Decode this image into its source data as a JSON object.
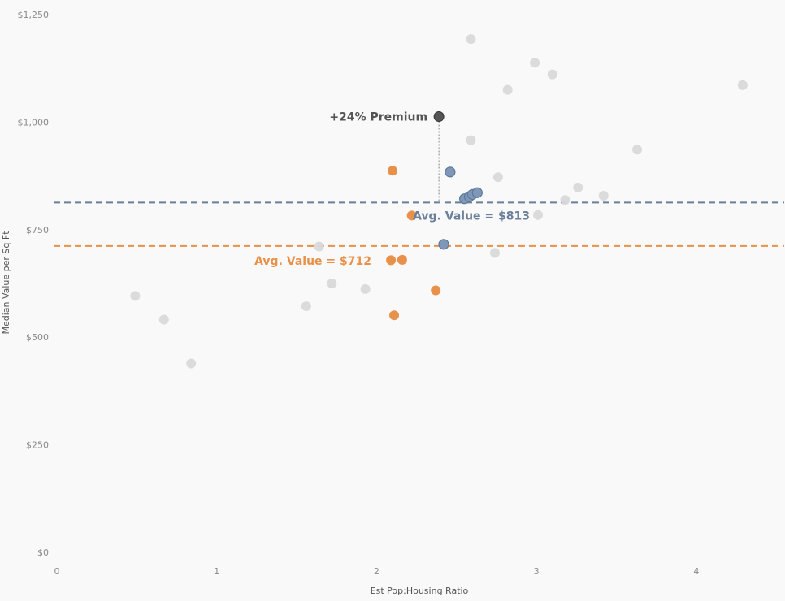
{
  "chart_data": {
    "type": "scatter",
    "xlabel": "Est Pop:Housing Ratio",
    "ylabel": "Median Value per Sq Ft",
    "xlim": [
      0,
      4.55
    ],
    "ylim": [
      0,
      1250
    ],
    "x_ticks": [
      {
        "value": 0,
        "label": "0"
      },
      {
        "value": 1,
        "label": "1"
      },
      {
        "value": 2,
        "label": "2"
      },
      {
        "value": 3,
        "label": "3"
      },
      {
        "value": 4,
        "label": "4"
      }
    ],
    "y_ticks": [
      {
        "value": 0,
        "label": "$0"
      },
      {
        "value": 250,
        "label": "$250"
      },
      {
        "value": 500,
        "label": "$500"
      },
      {
        "value": 750,
        "label": "$750"
      },
      {
        "value": 1000,
        "label": "$1,000"
      },
      {
        "value": 1250,
        "label": "$1,250"
      }
    ],
    "grid": false,
    "colors": {
      "gray": "#d9d9d9",
      "orange": "#e8914a",
      "blue": "#7f98b8",
      "highlight": "#555555",
      "blue_line": "#6a7f99",
      "orange_line": "#e8914a"
    },
    "series": [
      {
        "group": "gray",
        "points": [
          [
            0.49,
            596
          ],
          [
            0.67,
            541
          ],
          [
            0.84,
            439
          ],
          [
            1.56,
            572
          ],
          [
            1.64,
            711
          ],
          [
            1.72,
            625
          ],
          [
            1.93,
            612
          ],
          [
            2.59,
            1193
          ],
          [
            2.59,
            958
          ],
          [
            2.76,
            872
          ],
          [
            2.74,
            696
          ],
          [
            2.82,
            1075
          ],
          [
            2.99,
            1138
          ],
          [
            3.1,
            1111
          ],
          [
            3.01,
            784
          ],
          [
            3.18,
            819
          ],
          [
            3.26,
            848
          ],
          [
            3.42,
            829
          ],
          [
            3.63,
            936
          ],
          [
            4.29,
            1086
          ]
        ]
      },
      {
        "group": "orange",
        "points": [
          [
            2.1,
            887
          ],
          [
            2.22,
            783
          ],
          [
            2.09,
            679
          ],
          [
            2.16,
            680
          ],
          [
            2.11,
            551
          ],
          [
            2.37,
            609
          ]
        ]
      },
      {
        "group": "blue",
        "points": [
          [
            2.46,
            884
          ],
          [
            2.55,
            822
          ],
          [
            2.58,
            827
          ],
          [
            2.6,
            832
          ],
          [
            2.63,
            836
          ],
          [
            2.42,
            716
          ]
        ]
      },
      {
        "group": "highlight",
        "points": [
          [
            2.39,
            1013
          ]
        ]
      }
    ],
    "reference_lines": [
      {
        "name": "blue_avg",
        "value": 813,
        "color": "#6a7f99",
        "label": "Avg. Value = $813"
      },
      {
        "name": "orange_avg",
        "value": 712,
        "color": "#e8914a",
        "label": "Avg. Value = $712"
      }
    ],
    "annotations": [
      {
        "name": "premium",
        "text": "+24% Premium",
        "x": 2.39,
        "y": 1013,
        "color": "#555555"
      }
    ]
  }
}
